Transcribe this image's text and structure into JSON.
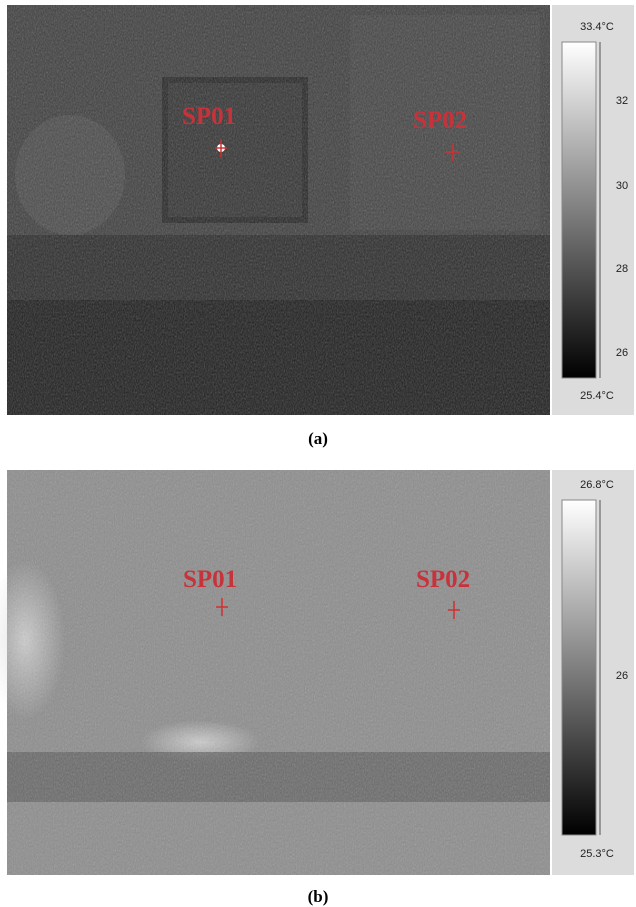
{
  "panels": [
    {
      "caption": "(a)",
      "spots": [
        "SP01",
        "SP02"
      ],
      "colorbar": {
        "max_label": "33.4°C",
        "ticks": [
          "32",
          "30",
          "28",
          "26"
        ],
        "min_label": "25.4°C"
      }
    },
    {
      "caption": "(b)",
      "spots": [
        "SP01",
        "SP02"
      ],
      "colorbar": {
        "max_label": "26.8°C",
        "ticks": [
          "26"
        ],
        "min_label": "25.3°C"
      }
    }
  ]
}
